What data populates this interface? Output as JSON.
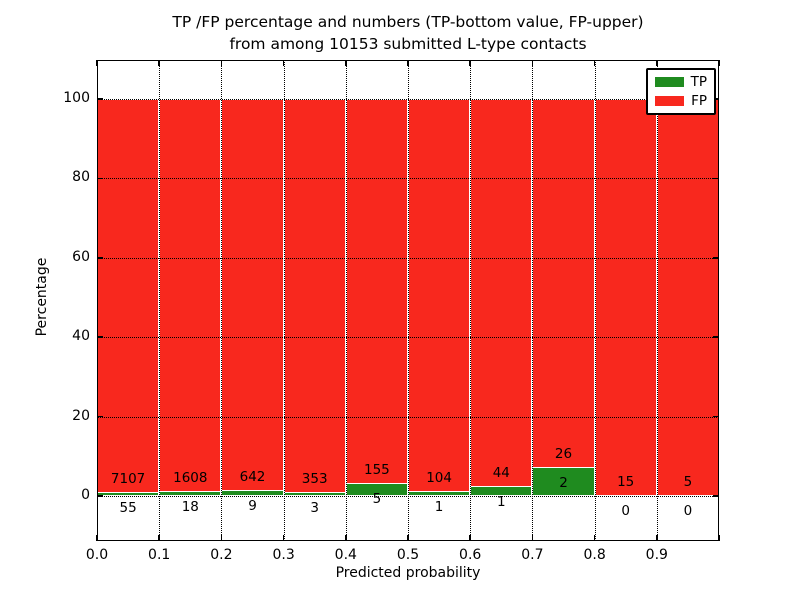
{
  "title": {
    "line1": "TP /FP percentage and numbers (TP-bottom value, FP-upper)",
    "line2": "from among 10153 submitted L-type contacts"
  },
  "axes": {
    "xlabel": "Predicted probability",
    "ylabel": "Percentage",
    "xtick_labels": [
      "0.0",
      "0.1",
      "0.2",
      "0.3",
      "0.4",
      "0.5",
      "0.6",
      "0.7",
      "0.8",
      "0.9"
    ],
    "ytick_labels": [
      "0",
      "20",
      "40",
      "60",
      "80",
      "100"
    ]
  },
  "legend": {
    "items": [
      {
        "label": "TP",
        "color": "#1f8b1f"
      },
      {
        "label": "FP",
        "color": "#f8281e"
      }
    ]
  },
  "colors": {
    "tp": "#1f8b1f",
    "fp": "#f8281e",
    "grid": "#000000",
    "background": "#ffffff",
    "bar_edge": "#ffffff"
  },
  "chart_data": {
    "type": "bar",
    "stacked": true,
    "normalized": "each bar stack scaled to 100%",
    "title": "TP /FP percentage and numbers (TP-bottom value, FP-upper) from among 10153 submitted L-type contacts",
    "xlabel": "Predicted probability",
    "ylabel": "Percentage",
    "xlim": [
      0.0,
      1.0
    ],
    "ylim_display": [
      -11.3,
      109.8
    ],
    "yticks": [
      0,
      20,
      40,
      60,
      80,
      100
    ],
    "xticks": [
      0.0,
      0.1,
      0.2,
      0.3,
      0.4,
      0.5,
      0.6,
      0.7,
      0.8,
      0.9,
      1.0
    ],
    "bin_width": 0.1,
    "bins": [
      "0.0-0.1",
      "0.1-0.2",
      "0.2-0.3",
      "0.3-0.4",
      "0.4-0.5",
      "0.5-0.6",
      "0.6-0.7",
      "0.7-0.8",
      "0.8-0.9",
      "0.9-1.0"
    ],
    "series": [
      {
        "name": "TP",
        "color": "#1f8b1f",
        "counts": [
          55,
          18,
          9,
          3,
          5,
          1,
          1,
          2,
          0,
          0
        ]
      },
      {
        "name": "FP",
        "color": "#f8281e",
        "counts": [
          7107,
          1608,
          642,
          353,
          155,
          104,
          44,
          26,
          15,
          5
        ]
      }
    ],
    "tp_percent_of_bin": [
      0.77,
      1.11,
      1.38,
      0.84,
      3.13,
      0.95,
      2.22,
      7.14,
      0.0,
      0.0
    ],
    "total_contacts": 10153,
    "grid": "dotted",
    "legend_position": "upper right"
  }
}
